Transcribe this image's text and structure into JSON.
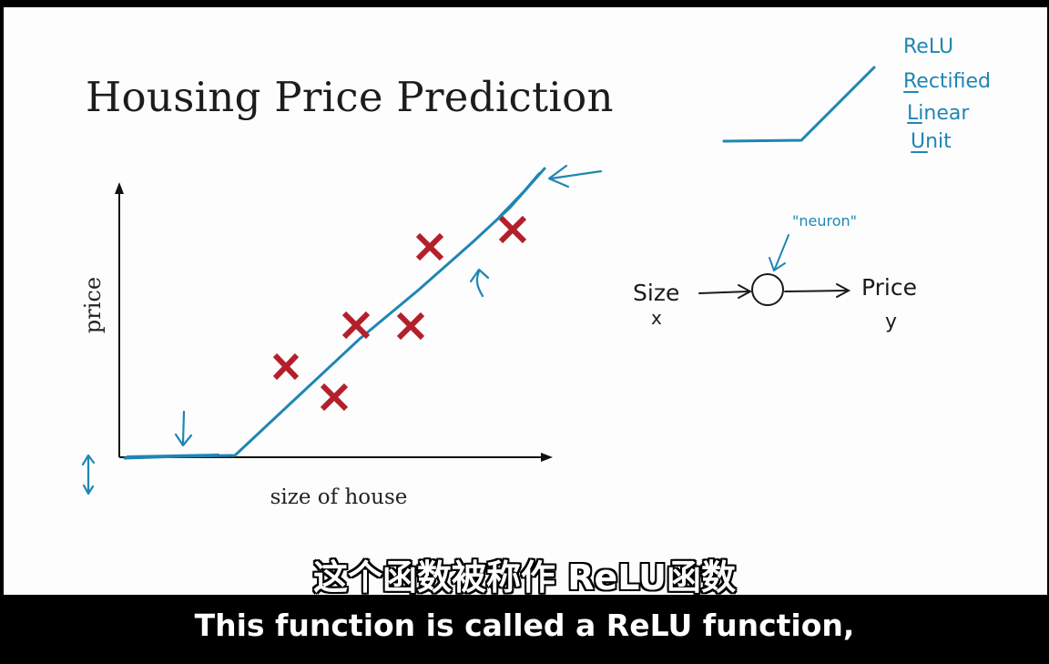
{
  "slide": {
    "title": "Housing Price Prediction",
    "y_axis_label": "price",
    "x_axis_label": "size of house"
  },
  "annotations": {
    "relu_lines": [
      "ReLU",
      "Rectified",
      "Linear",
      "Unit"
    ],
    "neuron_label": "\"neuron\"",
    "input_label": "Size",
    "input_var": "x",
    "output_label": "Price",
    "output_var": "y"
  },
  "subtitles": {
    "chinese": "这个函数被称作 ReLU函数",
    "english": "This function is called a ReLU function,"
  },
  "colors": {
    "marker_red": "#b3202b",
    "ink_blue": "#1f86b3",
    "slide_bg": "#fdfdfd",
    "letterbox": "#000000"
  },
  "icons": [
    "x-mark-icon",
    "arrow-icon",
    "neuron-circle-icon"
  ]
}
